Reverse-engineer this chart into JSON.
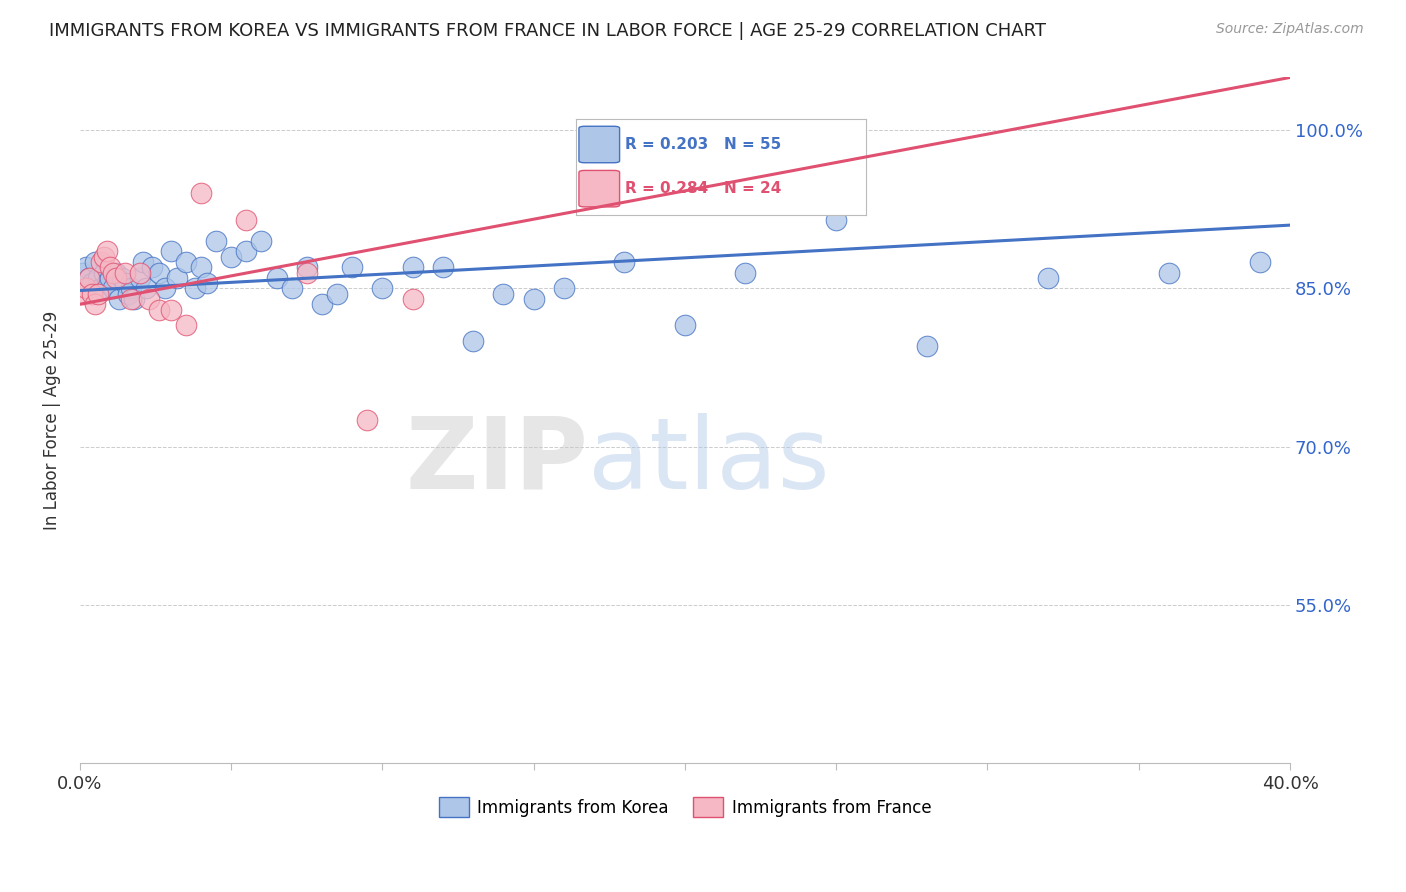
{
  "title": "IMMIGRANTS FROM KOREA VS IMMIGRANTS FROM FRANCE IN LABOR FORCE | AGE 25-29 CORRELATION CHART",
  "source": "Source: ZipAtlas.com",
  "ylabel": "In Labor Force | Age 25-29",
  "xlim": [
    0.0,
    40.0
  ],
  "ylim": [
    40.0,
    105.0
  ],
  "yticks": [
    55.0,
    70.0,
    85.0,
    100.0
  ],
  "xticks": [
    0.0,
    5.0,
    10.0,
    15.0,
    20.0,
    25.0,
    30.0,
    35.0,
    40.0
  ],
  "korea_color": "#aec6e8",
  "france_color": "#f5b8c4",
  "korea_line_color": "#4472c4",
  "france_line_color": "#e05070",
  "korea_R": 0.203,
  "korea_N": 55,
  "france_R": 0.284,
  "france_N": 24,
  "korea_scatter_x": [
    0.1,
    0.2,
    0.3,
    0.4,
    0.5,
    0.6,
    0.7,
    0.8,
    0.9,
    1.0,
    1.1,
    1.2,
    1.3,
    1.4,
    1.5,
    1.6,
    1.7,
    1.8,
    2.0,
    2.1,
    2.2,
    2.4,
    2.6,
    2.8,
    3.0,
    3.2,
    3.5,
    3.8,
    4.0,
    4.2,
    4.5,
    5.0,
    5.5,
    6.0,
    6.5,
    7.0,
    7.5,
    8.0,
    8.5,
    9.0,
    10.0,
    11.0,
    12.0,
    13.0,
    14.0,
    15.0,
    16.0,
    18.0,
    20.0,
    22.0,
    25.0,
    28.0,
    32.0,
    36.0,
    39.0
  ],
  "korea_scatter_y": [
    86.5,
    87.0,
    86.0,
    85.5,
    87.5,
    86.0,
    85.0,
    86.5,
    85.5,
    86.0,
    85.0,
    86.5,
    84.0,
    86.0,
    85.5,
    84.5,
    85.0,
    84.0,
    86.0,
    87.5,
    85.0,
    87.0,
    86.5,
    85.0,
    88.5,
    86.0,
    87.5,
    85.0,
    87.0,
    85.5,
    89.5,
    88.0,
    88.5,
    89.5,
    86.0,
    85.0,
    87.0,
    83.5,
    84.5,
    87.0,
    85.0,
    87.0,
    87.0,
    80.0,
    84.5,
    84.0,
    85.0,
    87.5,
    81.5,
    86.5,
    91.5,
    79.5,
    86.0,
    86.5,
    87.5
  ],
  "france_scatter_x": [
    0.1,
    0.2,
    0.3,
    0.4,
    0.5,
    0.6,
    0.7,
    0.8,
    0.9,
    1.0,
    1.1,
    1.2,
    1.5,
    1.7,
    2.0,
    2.3,
    2.6,
    3.0,
    3.5,
    4.0,
    5.5,
    7.5,
    9.5,
    11.0
  ],
  "france_scatter_y": [
    84.5,
    85.0,
    86.0,
    84.5,
    83.5,
    84.5,
    87.5,
    88.0,
    88.5,
    87.0,
    86.5,
    86.0,
    86.5,
    84.0,
    86.5,
    84.0,
    83.0,
    83.0,
    81.5,
    94.0,
    91.5,
    86.5,
    72.5,
    84.0
  ],
  "korea_line_x": [
    0.0,
    40.0
  ],
  "korea_line_y": [
    84.8,
    91.0
  ],
  "france_line_x": [
    0.0,
    40.0
  ],
  "france_line_y": [
    83.5,
    105.0
  ],
  "watermark_zip": "ZIP",
  "watermark_atlas": "atlas",
  "watermark_zip_color": "#c8c8c8",
  "watermark_atlas_color": "#b0c8e8",
  "background_color": "#ffffff",
  "grid_color": "#cccccc"
}
